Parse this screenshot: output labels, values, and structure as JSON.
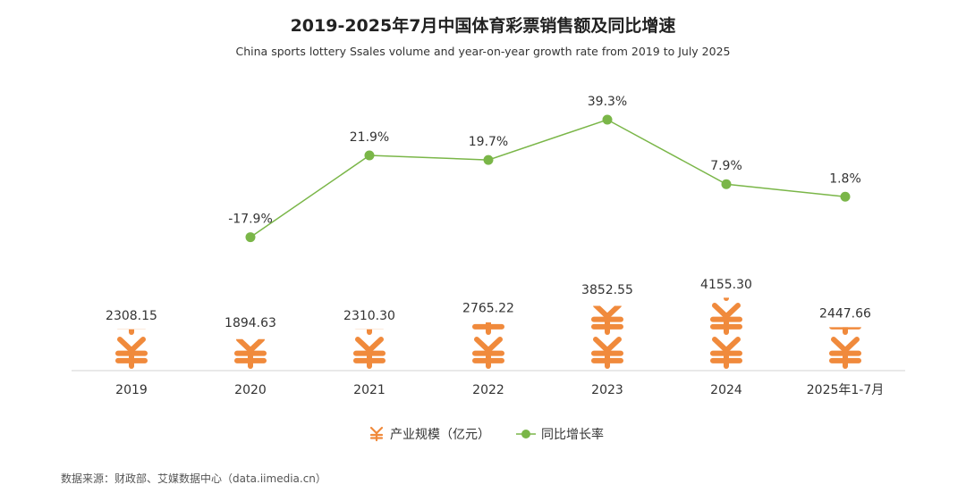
{
  "title": "2019-2025年7月中国体育彩票销售额及同比增速",
  "subtitle": "China sports lottery Ssales volume and year-on-year growth rate from 2019 to July 2025",
  "source": "数据来源：财政部、艾媒数据中心（data.iimedia.cn）",
  "chart_data": {
    "type": "pictorial-bar+line",
    "title": "2019-2025年7月中国体育彩票销售额及同比增速",
    "subtitle": "China sports lottery Ssales volume and year-on-year growth rate from 2019 to July 2025",
    "categories": [
      "2019",
      "2020",
      "2021",
      "2022",
      "2023",
      "2024",
      "2025年1-7月"
    ],
    "series": [
      {
        "name": "产业规模（亿元）",
        "type": "pictorial-bar",
        "values": [
          2308.15,
          1894.63,
          2310.3,
          2765.22,
          3852.55,
          4155.3,
          2447.66
        ],
        "labels": [
          "2308.15",
          "1894.63",
          "2310.30",
          "2765.22",
          "3852.55",
          "4155.30",
          "2447.66"
        ],
        "symbol": "¥",
        "color": "#f08a3c"
      },
      {
        "name": "同比增长率",
        "type": "line",
        "values": [
          null,
          -17.9,
          21.9,
          19.7,
          39.3,
          7.9,
          1.8
        ],
        "labels": [
          null,
          "-17.9%",
          "21.9%",
          "19.7%",
          "39.3%",
          "7.9%",
          "1.8%"
        ],
        "color": "#7ab648"
      }
    ],
    "legend": "bottom-center"
  }
}
